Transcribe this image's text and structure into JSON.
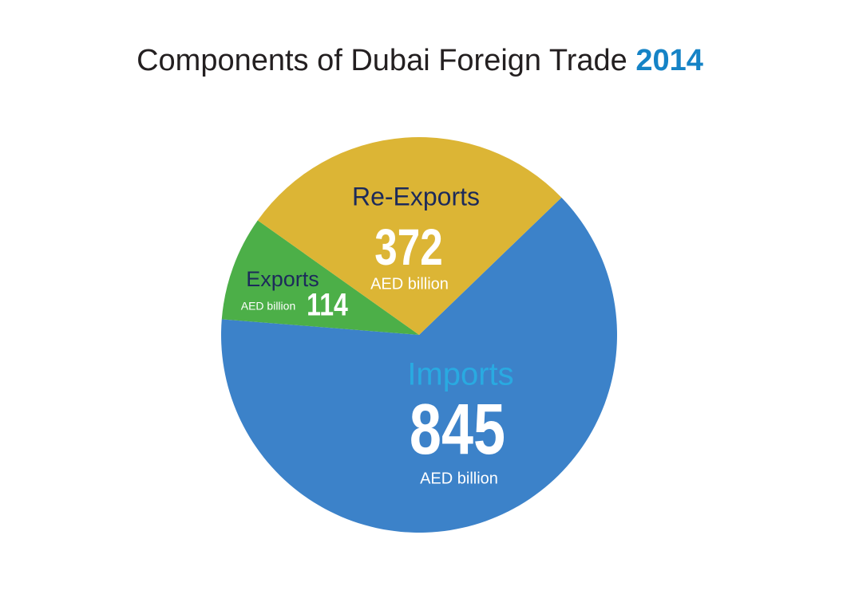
{
  "chart_data": {
    "type": "pie",
    "title": "Components of Dubai Foreign Trade",
    "title_year": "2014",
    "categories": [
      "Imports",
      "Exports",
      "Re-Exports"
    ],
    "values": [
      845,
      114,
      372
    ],
    "colors": [
      "#3c82c9",
      "#4caf48",
      "#dcb535"
    ],
    "unit": "AED billion"
  }
}
